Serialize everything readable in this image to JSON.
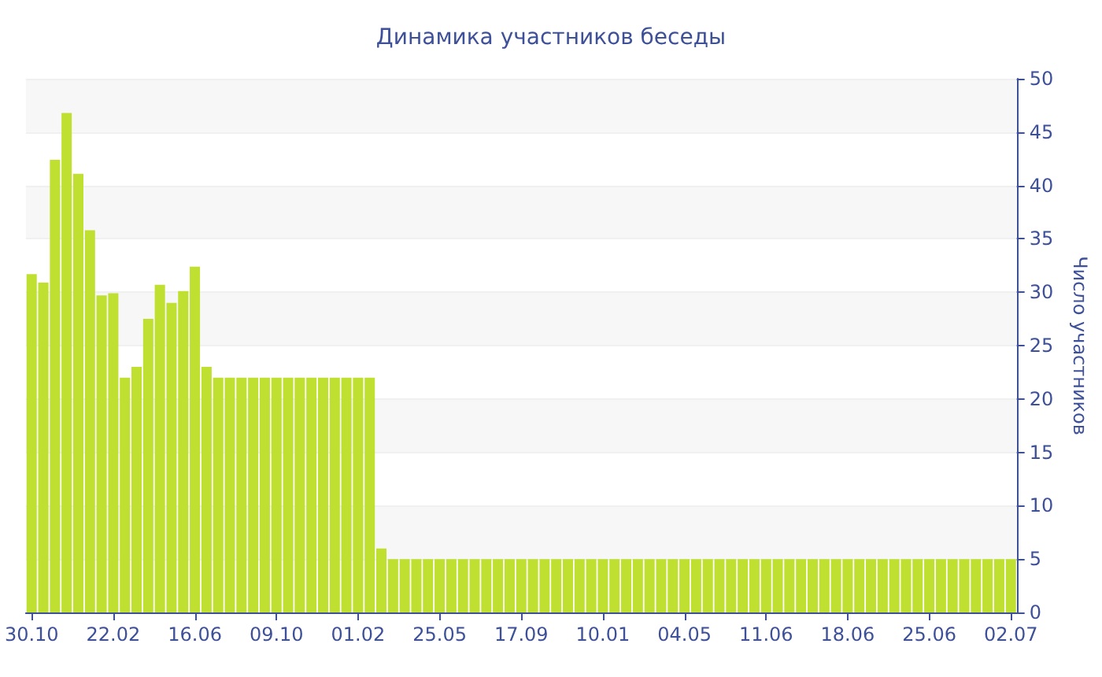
{
  "chart_data": {
    "type": "bar",
    "title": "Динамика участников беседы",
    "ylabel": "Число участников",
    "categories": [
      "30.10",
      null,
      null,
      null,
      null,
      null,
      null,
      "22.02",
      null,
      null,
      null,
      null,
      null,
      null,
      "16.06",
      null,
      null,
      null,
      null,
      null,
      null,
      "09.10",
      null,
      null,
      null,
      null,
      null,
      null,
      "01.02",
      null,
      null,
      null,
      null,
      null,
      null,
      "25.05",
      null,
      null,
      null,
      null,
      null,
      null,
      "17.09",
      null,
      null,
      null,
      null,
      null,
      null,
      "10.01",
      null,
      null,
      null,
      null,
      null,
      null,
      "04.05",
      null,
      null,
      null,
      null,
      null,
      null,
      "11.06",
      null,
      null,
      null,
      null,
      null,
      null,
      "18.06",
      null,
      null,
      null,
      null,
      null,
      null,
      "25.06",
      null,
      null,
      null,
      null,
      null,
      null,
      "02.07"
    ],
    "values": [
      31.7,
      30.9,
      42.4,
      46.8,
      41.1,
      35.8,
      29.7,
      29.9,
      22,
      23,
      27.5,
      30.7,
      29,
      30.1,
      32.4,
      23,
      22,
      22,
      22,
      22,
      22,
      22,
      22,
      22,
      22,
      22,
      22,
      22,
      22,
      22,
      6,
      5,
      5,
      5,
      5,
      5,
      5,
      5,
      5,
      5,
      5,
      5,
      5,
      5,
      5,
      5,
      5,
      5,
      5,
      5,
      5,
      5,
      5,
      5,
      5,
      5,
      5,
      5,
      5,
      5,
      5,
      5,
      5,
      5,
      5,
      5,
      5,
      5,
      5,
      5,
      5,
      5,
      5,
      5,
      5,
      5,
      5,
      5,
      5,
      5,
      5,
      5,
      5,
      5,
      5
    ],
    "color": "#bfe030",
    "ylim": [
      0,
      50
    ],
    "yticks": [
      0,
      5,
      10,
      15,
      20,
      25,
      30,
      35,
      40,
      45,
      50
    ],
    "grid": "y"
  }
}
